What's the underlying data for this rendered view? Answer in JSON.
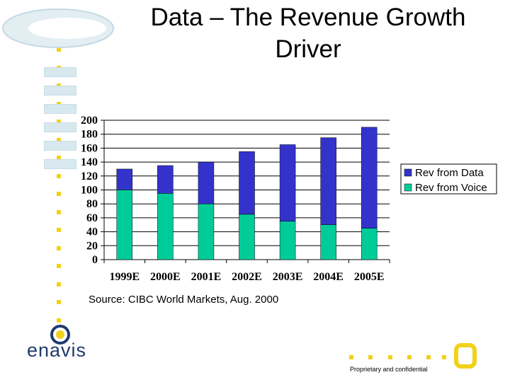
{
  "slide": {
    "title": "Data – The Revenue Growth Driver",
    "source": "Source: CIBC World Markets, Aug. 2000",
    "footer": "Proprietary and confidential",
    "logo_text": "enavis"
  },
  "colors": {
    "data": "#3333cc",
    "voice": "#00cc99",
    "accent": "#f2d11a",
    "logo": "#1f3a6e"
  },
  "chart_data": {
    "type": "bar",
    "stacked": true,
    "title": "",
    "xlabel": "",
    "ylabel": "",
    "categories": [
      "1999E",
      "2000E",
      "2001E",
      "2002E",
      "2003E",
      "2004E",
      "2005E"
    ],
    "series": [
      {
        "name": "Rev from Voice",
        "values": [
          100,
          95,
          80,
          65,
          55,
          50,
          45
        ]
      },
      {
        "name": "Rev from Data",
        "values": [
          30,
          40,
          60,
          90,
          110,
          125,
          145
        ]
      }
    ],
    "ylim": [
      0,
      200
    ],
    "yticks": [
      0,
      20,
      40,
      60,
      80,
      100,
      120,
      140,
      160,
      180,
      200
    ],
    "grid": true,
    "legend": "right"
  }
}
